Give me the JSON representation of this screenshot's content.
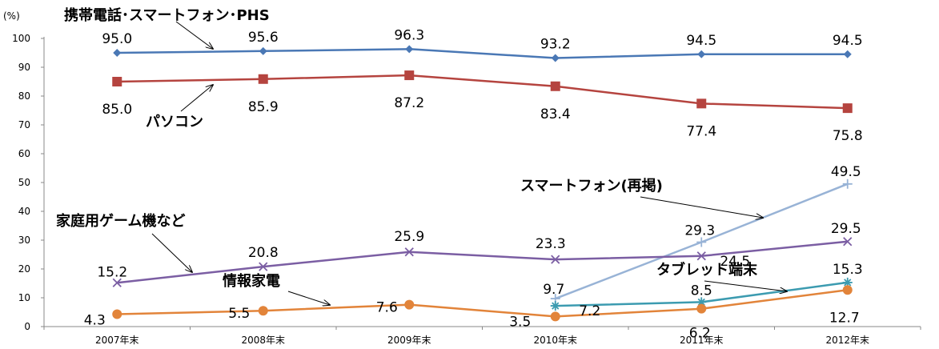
{
  "chart_data": {
    "type": "line",
    "y_unit": "(%)",
    "ylim": [
      0,
      100
    ],
    "yticks": [
      "0",
      "10",
      "20",
      "30",
      "40",
      "50",
      "60",
      "70",
      "80",
      "90",
      "100"
    ],
    "categories": [
      "2007年末",
      "2008年末",
      "2009年末",
      "2010年末",
      "2011年末",
      "2012年末"
    ],
    "grid": false,
    "series": [
      {
        "name": "携帯電話･スマートフォン･PHS",
        "color": "#4a78b5",
        "marker": "diamond",
        "values": [
          95.0,
          95.6,
          96.3,
          93.2,
          94.5,
          94.5
        ],
        "labels": [
          "95.0",
          "95.6",
          "96.3",
          "93.2",
          "94.5",
          "94.5"
        ]
      },
      {
        "name": "パソコン",
        "color": "#b5443f",
        "marker": "square",
        "values": [
          85.0,
          85.9,
          87.2,
          83.4,
          77.4,
          75.8
        ],
        "labels": [
          "85.0",
          "85.9",
          "87.2",
          "83.4",
          "77.4",
          "75.8"
        ]
      },
      {
        "name": "スマートフォン(再掲)",
        "color": "#98b3d6",
        "marker": "plus",
        "values": [
          null,
          null,
          null,
          9.7,
          29.3,
          49.5
        ],
        "labels": [
          "",
          "",
          "",
          "9.7",
          "29.3",
          "49.5"
        ]
      },
      {
        "name": "家庭用ゲーム機など",
        "color": "#7b5ea3",
        "marker": "x",
        "values": [
          15.2,
          20.8,
          25.9,
          23.3,
          24.5,
          29.5
        ],
        "labels": [
          "15.2",
          "20.8",
          "25.9",
          "23.3",
          "24.5",
          "29.5"
        ]
      },
      {
        "name": "タブレット端末",
        "color": "#3c9bb0",
        "marker": "star",
        "values": [
          null,
          null,
          null,
          7.2,
          8.5,
          15.3
        ],
        "labels": [
          "",
          "",
          "",
          "7.2",
          "8.5",
          "15.3"
        ]
      },
      {
        "name": "情報家電",
        "color": "#e2843a",
        "marker": "circle",
        "values": [
          4.3,
          5.5,
          7.6,
          3.5,
          6.2,
          12.7
        ],
        "labels": [
          "4.3",
          "5.5",
          "7.6",
          "3.5",
          "6.2",
          "12.7"
        ]
      }
    ]
  }
}
